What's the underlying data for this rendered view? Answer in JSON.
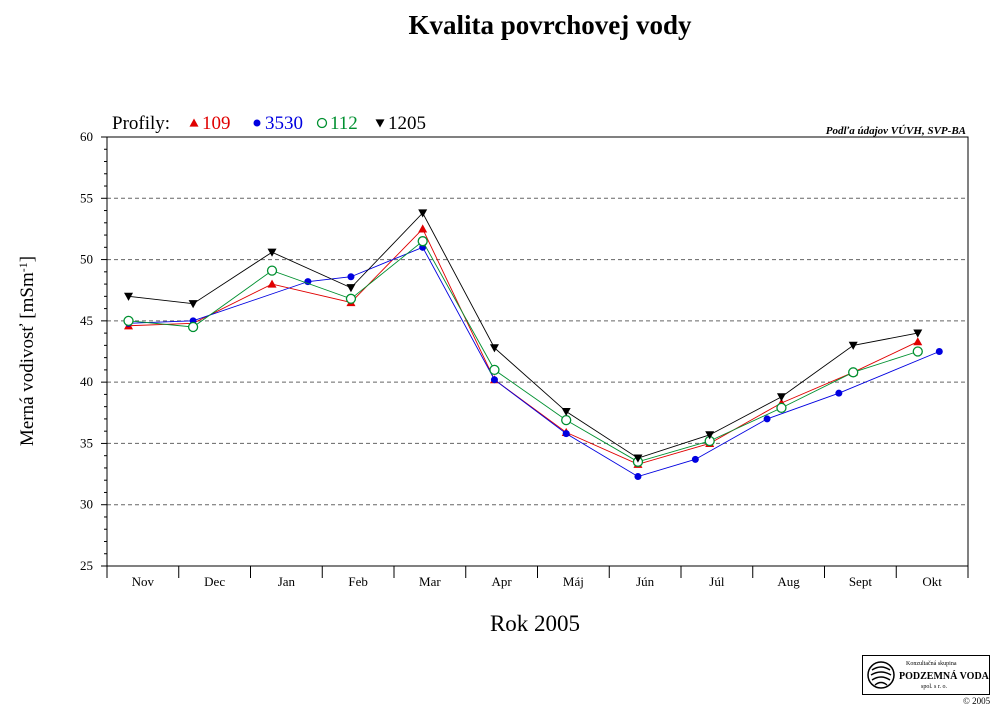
{
  "chart_data": {
    "type": "line",
    "title": "Kvalita povrchovej vody",
    "ylabel": "Merná vodivosť [mSm⁻¹]",
    "xlabel": "Rok  2005",
    "source_note": "Podľa údajov VÚVH, SVP-BA",
    "legend_prefix": "Profily:",
    "legend_placement": "top-left",
    "grid": true,
    "ylim": [
      25,
      60
    ],
    "yticks": [
      25,
      30,
      35,
      40,
      45,
      50,
      55,
      60
    ],
    "categories": [
      "Nov",
      "Dec",
      "Jan",
      "Feb",
      "Mar",
      "Apr",
      "Máj",
      "Jún",
      "Júl",
      "Aug",
      "Sept",
      "Okt"
    ],
    "series": [
      {
        "name": "109",
        "color": "#e00000",
        "marker": "triangle-up",
        "points": [
          [
            0.3,
            44.6
          ],
          [
            1.2,
            44.8
          ],
          [
            2.3,
            48.0
          ],
          [
            3.4,
            46.5
          ],
          [
            4.4,
            52.5
          ],
          [
            5.4,
            40.2
          ],
          [
            6.4,
            35.9
          ],
          [
            7.4,
            33.3
          ],
          [
            8.4,
            35.0
          ],
          [
            9.4,
            38.3
          ],
          [
            10.4,
            40.8
          ],
          [
            11.3,
            43.3
          ]
        ]
      },
      {
        "name": "3530",
        "color": "#0000e0",
        "marker": "circle-filled",
        "points": [
          [
            0.3,
            44.8
          ],
          [
            1.2,
            45.0
          ],
          [
            2.8,
            48.2
          ],
          [
            3.4,
            48.6
          ],
          [
            4.4,
            51.0
          ],
          [
            5.4,
            40.2
          ],
          [
            6.4,
            35.8
          ],
          [
            7.4,
            32.3
          ],
          [
            8.2,
            33.7
          ],
          [
            9.2,
            37.0
          ],
          [
            10.2,
            39.1
          ],
          [
            11.6,
            42.5
          ]
        ]
      },
      {
        "name": "112",
        "color": "#009030",
        "marker": "circle-open",
        "points": [
          [
            0.3,
            45.0
          ],
          [
            1.2,
            44.5
          ],
          [
            2.3,
            49.1
          ],
          [
            3.4,
            46.8
          ],
          [
            4.4,
            51.5
          ],
          [
            5.4,
            41.0
          ],
          [
            6.4,
            36.9
          ],
          [
            7.4,
            33.5
          ],
          [
            8.4,
            35.2
          ],
          [
            9.4,
            37.9
          ],
          [
            10.4,
            40.8
          ],
          [
            11.3,
            42.5
          ]
        ]
      },
      {
        "name": "1205",
        "color": "#000000",
        "marker": "triangle-down",
        "points": [
          [
            0.3,
            47.0
          ],
          [
            1.2,
            46.4
          ],
          [
            2.3,
            50.6
          ],
          [
            3.4,
            47.7
          ],
          [
            4.4,
            53.8
          ],
          [
            5.4,
            42.8
          ],
          [
            6.4,
            37.6
          ],
          [
            7.4,
            33.8
          ],
          [
            8.4,
            35.7
          ],
          [
            9.4,
            38.8
          ],
          [
            10.4,
            43.0
          ],
          [
            11.3,
            44.0
          ]
        ]
      }
    ]
  },
  "logo": {
    "top_text": "Konzultačná skupina",
    "name": "PODZEMNÁ VODA",
    "sub_text": "spol. s r. o.",
    "copyright": "© 2005"
  }
}
